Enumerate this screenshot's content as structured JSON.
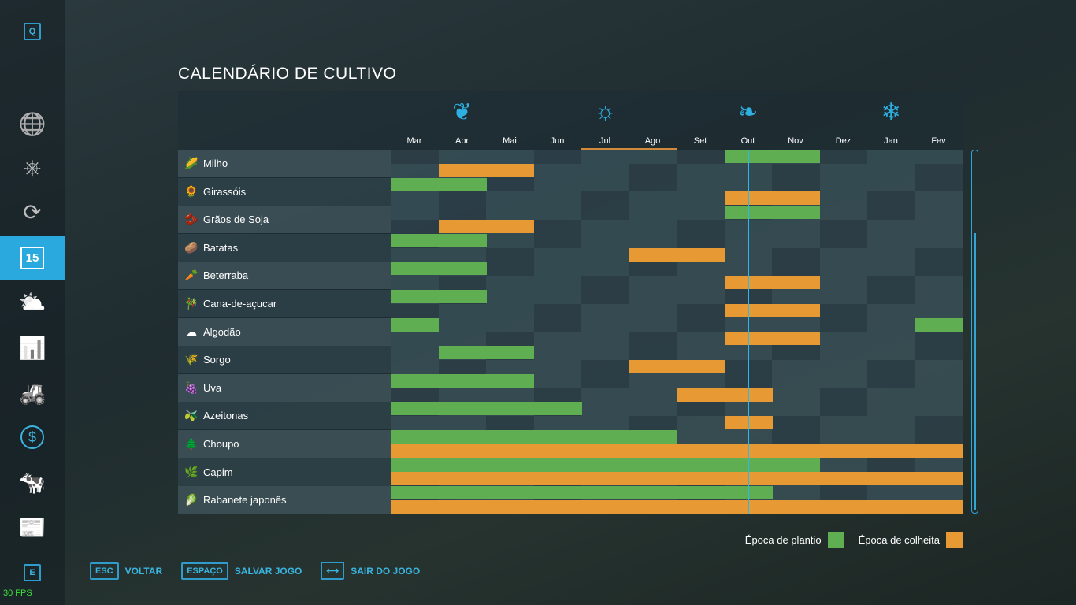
{
  "title": "CALENDÁRIO DE CULTIVO",
  "sidebar": {
    "top_key": "Q",
    "bottom_key": "E",
    "items": [
      {
        "icon": "map-icon"
      },
      {
        "icon": "steering-wheel-icon"
      },
      {
        "icon": "crop-cycle-icon"
      },
      {
        "icon": "calendar-icon",
        "label": "15",
        "active": true
      },
      {
        "icon": "weather-icon"
      },
      {
        "icon": "prices-chart-icon"
      },
      {
        "icon": "tractor-icon"
      },
      {
        "icon": "finances-icon"
      },
      {
        "icon": "animals-icon"
      },
      {
        "icon": "contracts-icon"
      }
    ]
  },
  "seasons": [
    {
      "name": "spring",
      "glyph": "❦"
    },
    {
      "name": "summer",
      "glyph": "☼"
    },
    {
      "name": "autumn",
      "glyph": "❧"
    },
    {
      "name": "winter",
      "glyph": "❄"
    }
  ],
  "months": [
    "Mar",
    "Abr",
    "Mai",
    "Jun",
    "Jul",
    "Ago",
    "Set",
    "Out",
    "Nov",
    "Dez",
    "Jan",
    "Fev"
  ],
  "crops": [
    {
      "name": "Milho",
      "icon": "🌽",
      "plant": [
        7,
        8
      ],
      "harvest": [
        1,
        2
      ]
    },
    {
      "name": "Girassóis",
      "icon": "🌻",
      "plant": [
        0,
        1
      ],
      "harvest": [
        7,
        8
      ]
    },
    {
      "name": "Grãos de Soja",
      "icon": "🫘",
      "plant": [
        7,
        8
      ],
      "harvest": [
        1,
        2
      ]
    },
    {
      "name": "Batatas",
      "icon": "🥔",
      "plant": [
        0,
        1
      ],
      "harvest": [
        5,
        6
      ]
    },
    {
      "name": "Beterraba",
      "icon": "🥕",
      "plant": [
        0,
        1
      ],
      "harvest": [
        7,
        8
      ]
    },
    {
      "name": "Cana-de-açucar",
      "icon": "🎋",
      "plant": [
        0,
        1
      ],
      "harvest": [
        7,
        8
      ]
    },
    {
      "name": "Algodão",
      "icon": "☁",
      "plant": [
        0,
        11
      ],
      "harvest": [
        7,
        8
      ]
    },
    {
      "name": "Sorgo",
      "icon": "🌾",
      "plant": [
        1,
        2
      ],
      "harvest": [
        5,
        6
      ]
    },
    {
      "name": "Uva",
      "icon": "🍇",
      "plant": [
        0,
        1,
        2
      ],
      "harvest": [
        6,
        7
      ]
    },
    {
      "name": "Azeitonas",
      "icon": "🫒",
      "plant": [
        0,
        1,
        2,
        3
      ],
      "harvest": [
        7
      ]
    },
    {
      "name": "Choupo",
      "icon": "🌲",
      "plant": [
        0,
        1,
        2,
        3,
        4,
        5
      ],
      "harvest": [
        0,
        1,
        2,
        3,
        4,
        5,
        6,
        7,
        8,
        9,
        10,
        11
      ]
    },
    {
      "name": "Capim",
      "icon": "🌿",
      "plant": [
        0,
        1,
        2,
        3,
        4,
        5,
        6,
        7,
        8
      ],
      "harvest": [
        0,
        1,
        2,
        3,
        4,
        5,
        6,
        7,
        8,
        9,
        10,
        11
      ]
    },
    {
      "name": "Rabanete japonês",
      "icon": "🥬",
      "plant": [
        0,
        1,
        2,
        3,
        4,
        5,
        6,
        7
      ],
      "harvest": [
        0,
        1,
        2,
        3,
        4,
        5,
        6,
        7,
        8,
        9,
        10,
        11
      ]
    }
  ],
  "current_month_position": 7.5,
  "legend": {
    "plant": "Época de plantio",
    "harvest": "Época de colheita"
  },
  "colors": {
    "plant": "#5fae52",
    "harvest": "#e79a33",
    "accent": "#2aa9de"
  },
  "footer": [
    {
      "key": "ESC",
      "label": "VOLTAR"
    },
    {
      "key": "ESPAÇO",
      "label": "SALVAR JOGO"
    },
    {
      "key": "⟷",
      "label": "SAIR DO JOGO"
    }
  ],
  "fps": "30 FPS"
}
